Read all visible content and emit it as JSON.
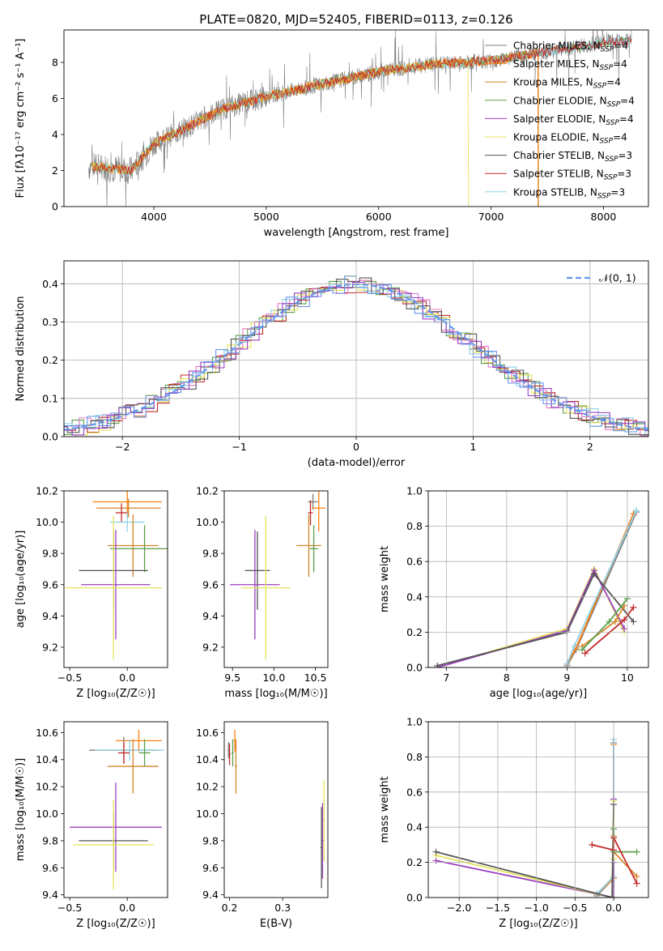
{
  "figure": {
    "title": "PLATE=0820, MJD=52405, FIBERID=0113, z=0.126"
  },
  "chart_data": [
    {
      "id": "spectrum",
      "type": "line",
      "xlabel": "wavelength [Angstrom, rest frame]",
      "ylabel": "Flux [fλ10⁻¹⁷ erg cm⁻² s⁻¹ A⁻¹]",
      "xlim": [
        3200,
        8400
      ],
      "ylim": [
        0,
        9.8
      ],
      "xticks": [
        4000,
        5000,
        6000,
        7000,
        8000
      ],
      "yticks": [
        0,
        2,
        4,
        6,
        8
      ],
      "grid": false,
      "legend_position": "top-right",
      "data_anchor_x": [
        3500,
        3800,
        4000,
        4300,
        4600,
        5000,
        5500,
        6000,
        6500,
        7000,
        7500,
        8000,
        8200
      ],
      "data_anchor_y": [
        2.2,
        2.0,
        3.5,
        4.4,
        5.4,
        6.1,
        6.8,
        7.5,
        7.9,
        8.1,
        8.6,
        9.1,
        9.2
      ],
      "legend": [
        "Chabrier MILES, N_SSP=4",
        "Salpeter MILES, N_SSP=4",
        "Kroupa MILES, N_SSP=4",
        "Chabrier ELODIE, N_SSP=4",
        "Salpeter ELODIE, N_SSP=4",
        "Kroupa ELODIE, N_SSP=4",
        "Chabrier STELIB, N_SSP=3",
        "Salpeter STELIB, N_SSP=3",
        "Kroupa STELIB, N_SSP=3"
      ]
    },
    {
      "id": "residuals",
      "type": "line",
      "xlabel": "(data-model)/error",
      "ylabel": "Normed distribution",
      "xlim": [
        -2.5,
        2.5
      ],
      "ylim": [
        0,
        0.46
      ],
      "xticks": [
        -2,
        -1,
        0,
        1,
        2
      ],
      "yticks": [
        0.0,
        0.1,
        0.2,
        0.3,
        0.4
      ],
      "grid": true,
      "legend_position": "top-right",
      "gaussian_label": "𝒩(0, 1)"
    },
    {
      "id": "age-vs-Z",
      "type": "scatter",
      "xlabel": "Z [log₁₀(Z/Z☉)]",
      "ylabel": "age  [log₁₀(age/yr)]",
      "xlim": [
        -0.55,
        0.35
      ],
      "ylim": [
        9.07,
        10.2
      ],
      "xticks": [
        -0.5,
        0.0
      ],
      "yticks": [
        9.2,
        9.4,
        9.6,
        9.8,
        10.0,
        10.2
      ],
      "grid": false,
      "points": [
        {
          "x": 0.0,
          "y": 10.13,
          "xerr": 0.3,
          "yerr": 0.1,
          "c": 1
        },
        {
          "x": 0.01,
          "y": 10.09,
          "xerr": 0.28,
          "yerr": 0.06,
          "c": 2
        },
        {
          "x": -0.05,
          "y": 10.06,
          "xerr": 0.05,
          "yerr": 0.06,
          "c": 7
        },
        {
          "x": 0.0,
          "y": 10.0,
          "xerr": 0.15,
          "yerr": 0.06,
          "c": 8
        },
        {
          "x": 0.05,
          "y": 9.85,
          "xerr": 0.22,
          "yerr": 0.2,
          "c": 2
        },
        {
          "x": 0.15,
          "y": 9.83,
          "xerr": 0.3,
          "yerr": 0.15,
          "c": 3
        },
        {
          "x": -0.12,
          "y": 9.69,
          "xerr": 0.3,
          "yerr": 0.25,
          "c": 6
        },
        {
          "x": -0.1,
          "y": 9.6,
          "xerr": 0.3,
          "yerr": 0.35,
          "c": 4
        },
        {
          "x": -0.12,
          "y": 9.58,
          "xerr": 0.42,
          "yerr": 0.46,
          "c": 5
        }
      ]
    },
    {
      "id": "age-vs-mass",
      "type": "scatter",
      "xlabel": "mass [log₁₀(M/M☉)]",
      "ylabel": "",
      "xlim": [
        9.4,
        10.65
      ],
      "ylim": [
        9.07,
        10.2
      ],
      "xticks": [
        9.5,
        10.0,
        10.5
      ],
      "yticks": [
        9.2,
        9.4,
        9.6,
        9.8,
        10.0,
        10.2
      ],
      "grid": false,
      "points": [
        {
          "x": 10.47,
          "y": 10.13,
          "xerr": 0.06,
          "yerr": 0.05,
          "c": 0
        },
        {
          "x": 10.54,
          "y": 10.09,
          "xerr": 0.08,
          "yerr": 0.15,
          "c": 1
        },
        {
          "x": 10.44,
          "y": 10.06,
          "xerr": 0.03,
          "yerr": 0.08,
          "c": 7
        },
        {
          "x": 10.42,
          "y": 9.85,
          "xerr": 0.15,
          "yerr": 0.2,
          "c": 2
        },
        {
          "x": 10.48,
          "y": 9.83,
          "xerr": 0.05,
          "yerr": 0.15,
          "c": 3
        },
        {
          "x": 9.8,
          "y": 9.69,
          "xerr": 0.15,
          "yerr": 0.25,
          "c": 6
        },
        {
          "x": 9.77,
          "y": 9.6,
          "xerr": 0.3,
          "yerr": 0.35,
          "c": 4
        },
        {
          "x": 9.9,
          "y": 9.58,
          "xerr": 0.3,
          "yerr": 0.46,
          "c": 5
        }
      ]
    },
    {
      "id": "weight-vs-age",
      "type": "line",
      "xlabel": "age  [log₁₀(age/yr)]",
      "ylabel": "mass weight",
      "xlim": [
        6.7,
        10.35
      ],
      "ylim": [
        0,
        1.0
      ],
      "xticks": [
        7,
        8,
        9,
        10
      ],
      "yticks": [
        0.0,
        0.2,
        0.4,
        0.6,
        0.8,
        1.0
      ],
      "grid": true,
      "series": [
        {
          "c": 0,
          "x": [
            9.0,
            9.15,
            10.15
          ],
          "y": [
            0.01,
            0.1,
            0.88
          ]
        },
        {
          "c": 1,
          "x": [
            9.0,
            9.15,
            10.1
          ],
          "y": [
            0.02,
            0.11,
            0.87
          ]
        },
        {
          "c": 8,
          "x": [
            9.0,
            9.12,
            10.15
          ],
          "y": [
            0.02,
            0.12,
            0.89
          ]
        },
        {
          "c": 5,
          "x": [
            6.85,
            9.0,
            9.45,
            9.95
          ],
          "y": [
            0.0,
            0.22,
            0.56,
            0.2
          ]
        },
        {
          "c": 4,
          "x": [
            6.85,
            9.0,
            9.45,
            9.95
          ],
          "y": [
            0.0,
            0.21,
            0.55,
            0.22
          ]
        },
        {
          "c": 6,
          "x": [
            6.85,
            9.0,
            9.45,
            10.1
          ],
          "y": [
            0.01,
            0.2,
            0.53,
            0.26
          ]
        },
        {
          "c": 2,
          "x": [
            9.25,
            9.8,
            9.95
          ],
          "y": [
            0.12,
            0.26,
            0.35
          ]
        },
        {
          "c": 3,
          "x": [
            9.25,
            9.7,
            10.0
          ],
          "y": [
            0.1,
            0.26,
            0.39
          ]
        },
        {
          "c": 7,
          "x": [
            9.3,
            9.95,
            10.1
          ],
          "y": [
            0.08,
            0.27,
            0.34
          ]
        }
      ]
    },
    {
      "id": "mass-vs-Z",
      "type": "scatter",
      "xlabel": "Z [log₁₀(Z/Z☉)]",
      "ylabel": "mass [log₁₀(M/M☉)]",
      "xlim": [
        -0.55,
        0.35
      ],
      "ylim": [
        9.38,
        10.68
      ],
      "xticks": [
        -0.5,
        0.0
      ],
      "yticks": [
        9.4,
        9.6,
        9.8,
        10.0,
        10.2,
        10.4,
        10.6
      ],
      "grid": false,
      "points": [
        {
          "x": 0.1,
          "y": 10.54,
          "xerr": 0.2,
          "yerr": 0.08,
          "c": 1
        },
        {
          "x": -0.03,
          "y": 10.47,
          "xerr": 0.3,
          "yerr": 0.1,
          "c": 0
        },
        {
          "x": 0.02,
          "y": 10.47,
          "xerr": 0.3,
          "yerr": 0.08,
          "c": 8
        },
        {
          "x": -0.03,
          "y": 10.45,
          "xerr": 0.05,
          "yerr": 0.08,
          "c": 7
        },
        {
          "x": 0.05,
          "y": 10.35,
          "xerr": 0.22,
          "yerr": 0.2,
          "c": 2
        },
        {
          "x": 0.15,
          "y": 10.45,
          "xerr": 0.05,
          "yerr": 0.1,
          "c": 3
        },
        {
          "x": -0.1,
          "y": 9.9,
          "xerr": 0.4,
          "yerr": 0.33,
          "c": 4
        },
        {
          "x": -0.12,
          "y": 9.8,
          "xerr": 0.3,
          "yerr": 0.2,
          "c": 6
        },
        {
          "x": -0.12,
          "y": 9.77,
          "xerr": 0.35,
          "yerr": 0.33,
          "c": 5
        }
      ]
    },
    {
      "id": "mass-vs-EBV",
      "type": "scatter",
      "xlabel": "E(B-V)",
      "ylabel": "",
      "xlim": [
        0.19,
        0.385
      ],
      "ylim": [
        9.38,
        10.68
      ],
      "xticks": [
        0.2,
        0.3
      ],
      "yticks": [
        9.4,
        9.6,
        9.8,
        10.0,
        10.2,
        10.4,
        10.6
      ],
      "grid": false,
      "points": [
        {
          "x": 0.198,
          "y": 10.47,
          "xerr": 0.002,
          "yerr": 0.06,
          "c": 0
        },
        {
          "x": 0.2,
          "y": 10.44,
          "xerr": 0.002,
          "yerr": 0.08,
          "c": 7
        },
        {
          "x": 0.21,
          "y": 10.54,
          "xerr": 0.002,
          "yerr": 0.08,
          "c": 1
        },
        {
          "x": 0.212,
          "y": 10.35,
          "xerr": 0.002,
          "yerr": 0.2,
          "c": 2
        },
        {
          "x": 0.206,
          "y": 10.45,
          "xerr": 0.002,
          "yerr": 0.1,
          "c": 3
        },
        {
          "x": 0.378,
          "y": 9.95,
          "xerr": 0.002,
          "yerr": 0.3,
          "c": 5
        },
        {
          "x": 0.375,
          "y": 9.8,
          "xerr": 0.002,
          "yerr": 0.28,
          "c": 4
        },
        {
          "x": 0.373,
          "y": 9.75,
          "xerr": 0.002,
          "yerr": 0.3,
          "c": 6
        }
      ]
    },
    {
      "id": "weight-vs-Z",
      "type": "line",
      "xlabel": "Z [log₁₀(Z/Z☉)]",
      "ylabel": "mass weight",
      "xlim": [
        -2.4,
        0.45
      ],
      "ylim": [
        0,
        1.0
      ],
      "xticks": [
        -2.0,
        -1.5,
        -1.0,
        -0.5,
        0.0
      ],
      "yticks": [
        0.0,
        0.2,
        0.4,
        0.6,
        0.8,
        1.0
      ],
      "grid": true,
      "series": [
        {
          "c": 0,
          "x": [
            -0.22,
            0.0,
            0.0
          ],
          "y": [
            0.01,
            0.11,
            0.88
          ]
        },
        {
          "c": 1,
          "x": [
            -0.22,
            0.0,
            0.0
          ],
          "y": [
            0.02,
            0.11,
            0.87
          ]
        },
        {
          "c": 8,
          "x": [
            -0.22,
            0.0,
            0.0
          ],
          "y": [
            0.02,
            0.12,
            0.9
          ]
        },
        {
          "c": 4,
          "x": [
            -2.3,
            0.0,
            0.0,
            0.0
          ],
          "y": [
            0.21,
            0.0,
            0.56,
            0.2
          ]
        },
        {
          "c": 5,
          "x": [
            -2.3,
            -0.02,
            0.0,
            0.0
          ],
          "y": [
            0.24,
            0.0,
            0.55,
            0.22
          ]
        },
        {
          "c": 6,
          "x": [
            -2.3,
            -0.02,
            0.0
          ],
          "y": [
            0.26,
            0.0,
            0.53
          ]
        },
        {
          "c": 2,
          "x": [
            0.0,
            0.0,
            0.3
          ],
          "y": [
            0.35,
            0.26,
            0.12
          ]
        },
        {
          "c": 3,
          "x": [
            0.0,
            0.0,
            0.3
          ],
          "y": [
            0.39,
            0.26,
            0.26
          ]
        },
        {
          "c": 7,
          "x": [
            -0.28,
            0.0,
            0.0,
            0.3
          ],
          "y": [
            0.3,
            0.27,
            0.34,
            0.08
          ]
        }
      ]
    }
  ],
  "colors": [
    "#7f7f7f",
    "#ff7f0e",
    "#d6852a",
    "#5c9e4a",
    "#9b3fc1",
    "#e6e35a",
    "#555555",
    "#c42a2a",
    "#8fd2e8"
  ],
  "residual_colors": [
    "#5c9e4a",
    "#c42a2a",
    "#e377c2",
    "#8fd2e8",
    "#e6e35a",
    "#555555",
    "#9b3fc1",
    "#6495ed"
  ],
  "gaussian_color": "#6495ed"
}
